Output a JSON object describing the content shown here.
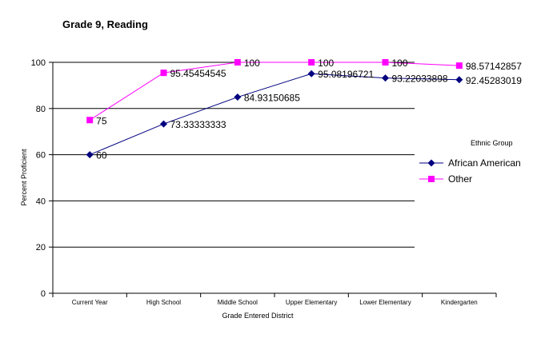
{
  "chart_data": {
    "type": "line",
    "title": "Grade 9, Reading",
    "xlabel": "Grade Entered District",
    "ylabel": "Percent Proficient",
    "ylim": [
      0,
      100
    ],
    "yticks": [
      0,
      20,
      40,
      60,
      80,
      100
    ],
    "grid": true,
    "legend_title": "Ethnic Group",
    "legend_position": "right",
    "categories": [
      "Current Year",
      "High School",
      "Middle School",
      "Upper Elementary",
      "Lower Elementary",
      "Kindergarten"
    ],
    "series": [
      {
        "name": "African American",
        "color": "#000080",
        "marker": "diamond",
        "values": [
          60,
          73.33333333,
          84.93150685,
          95.08196721,
          93.22033898,
          92.45283019
        ],
        "labels": [
          "60",
          "73.33333333",
          "84.93150685",
          "95.08196721",
          "93.22033898",
          "92.45283019"
        ]
      },
      {
        "name": "Other",
        "color": "#ff00ff",
        "marker": "square",
        "values": [
          75,
          95.45454545,
          100,
          100,
          100,
          98.57142857
        ],
        "labels": [
          "75",
          "95.45454545",
          "100",
          "100",
          "100",
          "98.57142857"
        ]
      }
    ]
  }
}
